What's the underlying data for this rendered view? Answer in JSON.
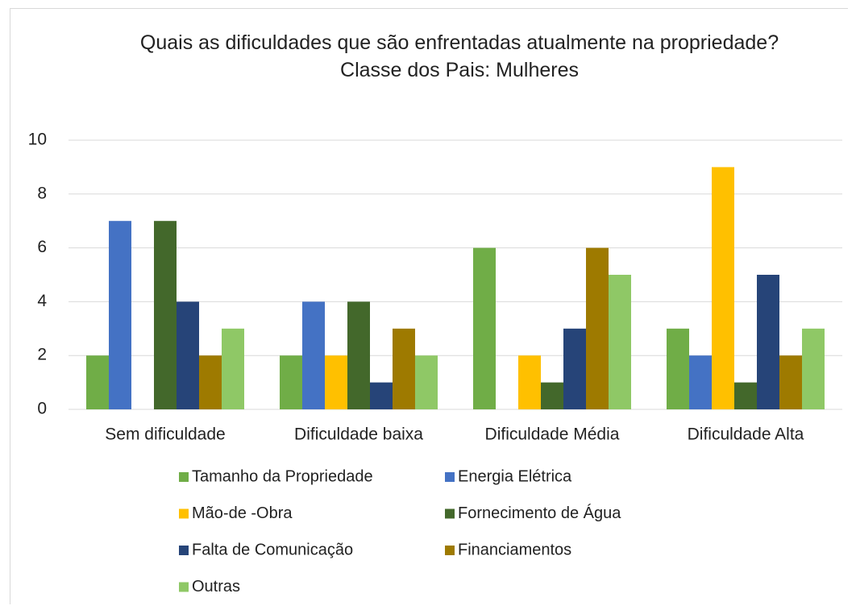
{
  "chart_data": {
    "type": "bar",
    "title": "Quais as dificuldades que são enfrentadas atualmente na propriedade?",
    "subtitle": "Classe dos Pais: Mulheres",
    "categories": [
      "Sem dificuldade",
      "Dificuldade baixa",
      "Dificuldade Média",
      "Dificuldade Alta"
    ],
    "series": [
      {
        "name": "Tamanho da Propriedade",
        "color": "#70ad47",
        "values": [
          2,
          2,
          6,
          3
        ]
      },
      {
        "name": "Energia Elétrica",
        "color": "#4472c4",
        "values": [
          7,
          4,
          0,
          2
        ]
      },
      {
        "name": "Mão-de -Obra",
        "color": "#ffc000",
        "values": [
          0,
          2,
          2,
          9
        ]
      },
      {
        "name": "Fornecimento de Água",
        "color": "#43682b",
        "values": [
          7,
          4,
          1,
          1
        ]
      },
      {
        "name": "Falta de Comunicação",
        "color": "#264478",
        "values": [
          4,
          1,
          3,
          5
        ]
      },
      {
        "name": "Financiamentos",
        "color": "#9e7a00",
        "values": [
          2,
          3,
          6,
          2
        ]
      },
      {
        "name": "Outras",
        "color": "#8fc866",
        "values": [
          3,
          2,
          5,
          3
        ]
      }
    ],
    "ylim": [
      0,
      10
    ],
    "yticks": [
      0,
      2,
      4,
      6,
      8,
      10
    ],
    "grid": true,
    "legend": "bottom"
  }
}
